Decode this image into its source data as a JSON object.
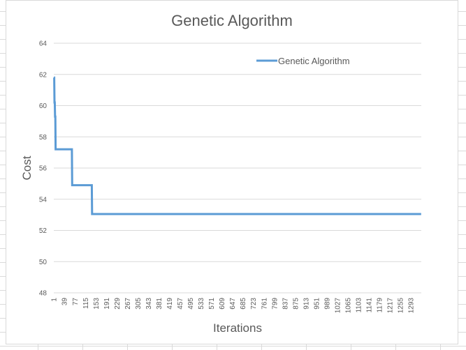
{
  "colors": {
    "series": "#5b9bd5",
    "gridline": "#d9d9d9",
    "text": "#595959",
    "sheet_grid": "#dadada"
  },
  "chart_data": {
    "type": "line",
    "title": "Genetic Algorithm",
    "xlabel": "Iterations",
    "ylabel": "Cost",
    "ylim": [
      48,
      64
    ],
    "y_ticks": [
      48,
      50,
      52,
      54,
      56,
      58,
      60,
      62,
      64
    ],
    "x_category_count": 1330,
    "x_tick_labels": [
      "1",
      "39",
      "77",
      "115",
      "153",
      "191",
      "229",
      "267",
      "305",
      "343",
      "381",
      "419",
      "457",
      "495",
      "533",
      "571",
      "609",
      "647",
      "685",
      "723",
      "761",
      "799",
      "837",
      "875",
      "913",
      "951",
      "989",
      "1027",
      "1065",
      "1103",
      "1141",
      "1179",
      "1217",
      "1255",
      "1293"
    ],
    "grid": true,
    "legend_position": "top-right",
    "series": [
      {
        "name": "Genetic Algorithm",
        "x": [
          1,
          2,
          3,
          4,
          5,
          6,
          7,
          8,
          9,
          10,
          11,
          12,
          66,
          67,
          138,
          139,
          1330
        ],
        "values": [
          61.8,
          61.8,
          60.2,
          60.2,
          59.3,
          59.3,
          57.2,
          57.2,
          57.2,
          57.2,
          57.2,
          57.2,
          57.2,
          54.9,
          54.9,
          53.05,
          53.05
        ]
      }
    ]
  }
}
